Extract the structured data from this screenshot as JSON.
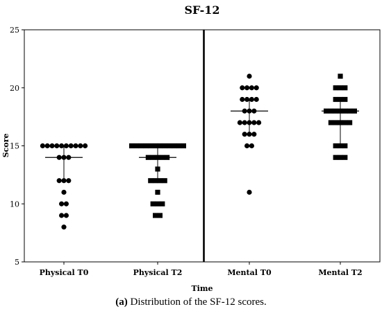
{
  "chart_data": {
    "type": "scatter",
    "title": "SF-12",
    "xlabel": "Time",
    "ylabel": "Score",
    "ylim": [
      5,
      25
    ],
    "yticks": [
      "5",
      "10",
      "15",
      "20",
      "25"
    ],
    "categories": [
      "Physical T0",
      "Physical T2",
      "Mental T0",
      "Mental T2"
    ],
    "marker_shapes": [
      "circle",
      "square",
      "circle",
      "square"
    ],
    "groups": [
      {
        "category": "Physical T0",
        "values": [
          15,
          15,
          15,
          15,
          15,
          15,
          15,
          15,
          15,
          15,
          14,
          14,
          14,
          12,
          12,
          12,
          11,
          10,
          10,
          9,
          9,
          8
        ],
        "median": 14,
        "q1": 12,
        "q3": 15
      },
      {
        "category": "Physical T2",
        "values": [
          15,
          15,
          15,
          15,
          15,
          15,
          15,
          15,
          15,
          15,
          15,
          15,
          14,
          14,
          14,
          14,
          14,
          13,
          12,
          12,
          12,
          12,
          11,
          10,
          10,
          10,
          9,
          9
        ],
        "median": 14,
        "q1": 12,
        "q3": 15
      },
      {
        "category": "Mental T0",
        "values": [
          21,
          20,
          20,
          20,
          20,
          19,
          19,
          19,
          19,
          18,
          18,
          18,
          17,
          17,
          17,
          17,
          17,
          16,
          16,
          16,
          15,
          15,
          11
        ],
        "median": 18,
        "q1": 16,
        "q3": 19
      },
      {
        "category": "Mental T2",
        "values": [
          21,
          20,
          20,
          20,
          19,
          19,
          19,
          18,
          18,
          18,
          18,
          18,
          18,
          18,
          17,
          17,
          17,
          17,
          17,
          15,
          15,
          15,
          14,
          14,
          14
        ],
        "median": 18,
        "q1": 15,
        "q3": 19
      }
    ],
    "divider_between": [
      "Physical T2",
      "Mental T0"
    ],
    "grid": false,
    "legend": "none"
  },
  "caption": {
    "label": "(a)",
    "text": "Distribution of the SF-12 scores."
  }
}
